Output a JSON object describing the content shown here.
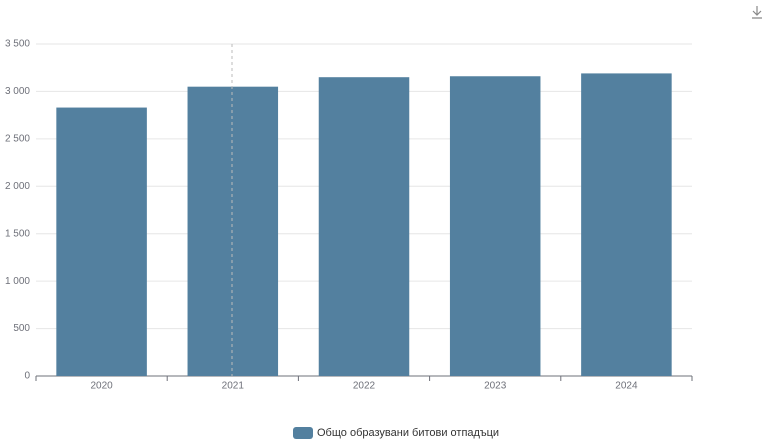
{
  "chart_data": {
    "type": "bar",
    "categories": [
      "2020",
      "2021",
      "2022",
      "2023",
      "2024"
    ],
    "series": [
      {
        "name": "Общо образувани битови отпадъци",
        "color": "#53809f",
        "values": [
          2830,
          3050,
          3150,
          3160,
          3190
        ]
      }
    ],
    "ylim": [
      0,
      3500
    ],
    "yticks": [
      0,
      500,
      {
        "value": 1000,
        "label": "1 000"
      },
      {
        "value": 1500,
        "label": "1 500"
      },
      {
        "value": 2000,
        "label": "2 000"
      },
      {
        "value": 2500,
        "label": "2 500"
      },
      {
        "value": 3000,
        "label": "3 000"
      },
      {
        "value": 3500,
        "label": "3 500"
      }
    ],
    "grid": true
  }
}
